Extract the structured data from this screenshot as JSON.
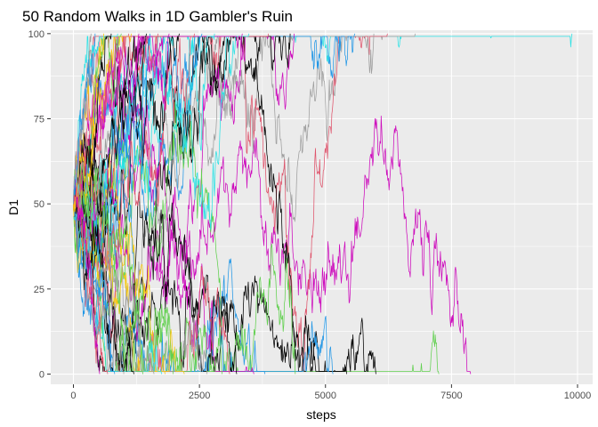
{
  "chart_data": {
    "type": "line",
    "title": "50 Random Walks in 1D Gambler's Ruin",
    "xlabel": "steps",
    "ylabel": "D1",
    "xlim": [
      -450,
      10300
    ],
    "ylim": [
      -3,
      101
    ],
    "x_ticks": [
      0,
      2500,
      5000,
      7500,
      10000
    ],
    "x_tick_labels": [
      "0",
      "2500",
      "5000",
      "7500",
      "10000"
    ],
    "y_ticks": [
      0,
      25,
      50,
      75,
      100
    ],
    "y_tick_labels": [
      "0",
      "25",
      "50",
      "75",
      "100"
    ],
    "grid": true,
    "legend": "none",
    "panel_background": "#ebebeb",
    "grid_color": "#ffffff",
    "walk_count": 50,
    "start_value": 50,
    "absorbing_bounds": [
      0,
      100
    ],
    "palette": [
      "#000000",
      "#df536b",
      "#61d04f",
      "#2297e6",
      "#28e2e5",
      "#cd0bbc",
      "#f5c710",
      "#9e9e9e"
    ],
    "series": [
      {
        "color": "#28e2e5",
        "end_step": 9890,
        "end_value": 100
      },
      {
        "color": "#cd0bbc",
        "end_step": 7880,
        "end_value": 0
      },
      {
        "color": "#61d04f",
        "end_step": 7250,
        "end_value": 0
      },
      {
        "color": "#9e9e9e",
        "end_step": 6780,
        "end_value": 100
      },
      {
        "color": "#df536b",
        "end_step": 6230,
        "end_value": 100
      },
      {
        "color": "#000000",
        "end_step": 6000,
        "end_value": 0
      },
      {
        "color": "#9e9e9e",
        "end_step": 5960,
        "end_value": 100
      },
      {
        "color": "#2297e6",
        "end_step": 5580,
        "end_value": 100
      },
      {
        "color": "#000000",
        "end_step": 5420,
        "end_value": 0
      },
      {
        "color": "#2297e6",
        "end_step": 5150,
        "end_value": 0
      },
      {
        "color": "#cd0bbc",
        "end_step": 4380,
        "end_value": 100
      },
      {
        "color": "#000000",
        "end_step": 4300,
        "end_value": 100
      },
      {
        "color": "#61d04f",
        "end_step": 4400,
        "end_value": 0
      },
      {
        "color": "#df536b",
        "end_step": 3870,
        "end_value": 100
      },
      {
        "color": "#2297e6",
        "end_step": 3800,
        "end_value": 0
      },
      {
        "color": "#cd0bbc",
        "end_step": 3580,
        "end_value": 0
      },
      {
        "color": "#28e2e5",
        "end_step": 3480,
        "end_value": 100
      },
      {
        "color": "#cd0bbc",
        "end_step": 3350,
        "end_value": 100
      },
      {
        "color": "#000000",
        "end_step": 3240,
        "end_value": 0
      },
      {
        "color": "#df536b",
        "end_step": 3100,
        "end_value": 0
      },
      {
        "color": "#61d04f",
        "end_step": 2950,
        "end_value": 0
      },
      {
        "color": "#28e2e5",
        "end_step": 2800,
        "end_value": 100
      },
      {
        "color": "#9e9e9e",
        "end_step": 2650,
        "end_value": 0
      },
      {
        "color": "#2297e6",
        "end_step": 2550,
        "end_value": 100
      },
      {
        "color": "#df536b",
        "end_step": 2400,
        "end_value": 100
      },
      {
        "color": "#f5c710",
        "end_step": 2200,
        "end_value": 0
      },
      {
        "color": "#000000",
        "end_step": 2100,
        "end_value": 100
      },
      {
        "color": "#61d04f",
        "end_step": 1980,
        "end_value": 0
      },
      {
        "color": "#cd0bbc",
        "end_step": 1900,
        "end_value": 100
      },
      {
        "color": "#f5c710",
        "end_step": 1820,
        "end_value": 0
      },
      {
        "color": "#28e2e5",
        "end_step": 1750,
        "end_value": 0
      },
      {
        "color": "#df536b",
        "end_step": 1680,
        "end_value": 100
      },
      {
        "color": "#9e9e9e",
        "end_step": 1600,
        "end_value": 0
      },
      {
        "color": "#2297e6",
        "end_step": 1520,
        "end_value": 100
      },
      {
        "color": "#000000",
        "end_step": 1450,
        "end_value": 100
      },
      {
        "color": "#61d04f",
        "end_step": 1380,
        "end_value": 0
      },
      {
        "color": "#cd0bbc",
        "end_step": 1300,
        "end_value": 100
      },
      {
        "color": "#000000",
        "end_step": 1200,
        "end_value": 0
      },
      {
        "color": "#f5c710",
        "end_step": 1150,
        "end_value": 100
      },
      {
        "color": "#df536b",
        "end_step": 1100,
        "end_value": 100
      },
      {
        "color": "#9e9e9e",
        "end_step": 1000,
        "end_value": 0
      },
      {
        "color": "#61d04f",
        "end_step": 950,
        "end_value": 100
      },
      {
        "color": "#28e2e5",
        "end_step": 880,
        "end_value": 100
      },
      {
        "color": "#2297e6",
        "end_step": 820,
        "end_value": 0
      },
      {
        "color": "#000000",
        "end_step": 750,
        "end_value": 100
      },
      {
        "color": "#df536b",
        "end_step": 680,
        "end_value": 0
      },
      {
        "color": "#f5c710",
        "end_step": 600,
        "end_value": 100
      },
      {
        "color": "#cd0bbc",
        "end_step": 520,
        "end_value": 0
      },
      {
        "color": "#2297e6",
        "end_step": 430,
        "end_value": 100
      },
      {
        "color": "#9e9e9e",
        "end_step": 350,
        "end_value": 100
      }
    ]
  }
}
